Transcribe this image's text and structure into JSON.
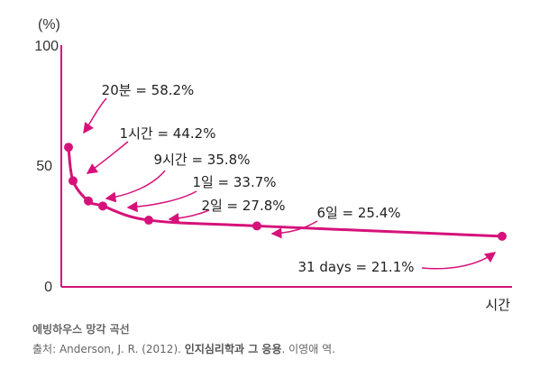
{
  "chart_data": {
    "type": "line",
    "x": [
      "20분",
      "1시간",
      "9시간",
      "1일",
      "2일",
      "6일",
      "31 days"
    ],
    "y": [
      58.2,
      44.2,
      35.8,
      33.7,
      27.8,
      25.4,
      21.1
    ],
    "ylim": [
      0,
      100
    ],
    "yticks": [
      "0",
      "50",
      "100"
    ],
    "ylabel": "(%)",
    "xlabel": "시간",
    "annotations": [
      "20분 = 58.2%",
      "1시간 = 44.2%",
      "9시간 = 35.8%",
      "1일 = 33.7%",
      "2일 = 27.8%",
      "6일 = 25.4%",
      "31 days = 21.1%"
    ],
    "color": "#d6127a",
    "grid": false
  },
  "caption": {
    "title": "에빙하우스 망각 곡선",
    "source_prefix": "출처: Anderson, J. R. (2012).",
    "source_book": "인지심리학과 그 응용",
    "source_suffix": ". 이영애 역."
  }
}
